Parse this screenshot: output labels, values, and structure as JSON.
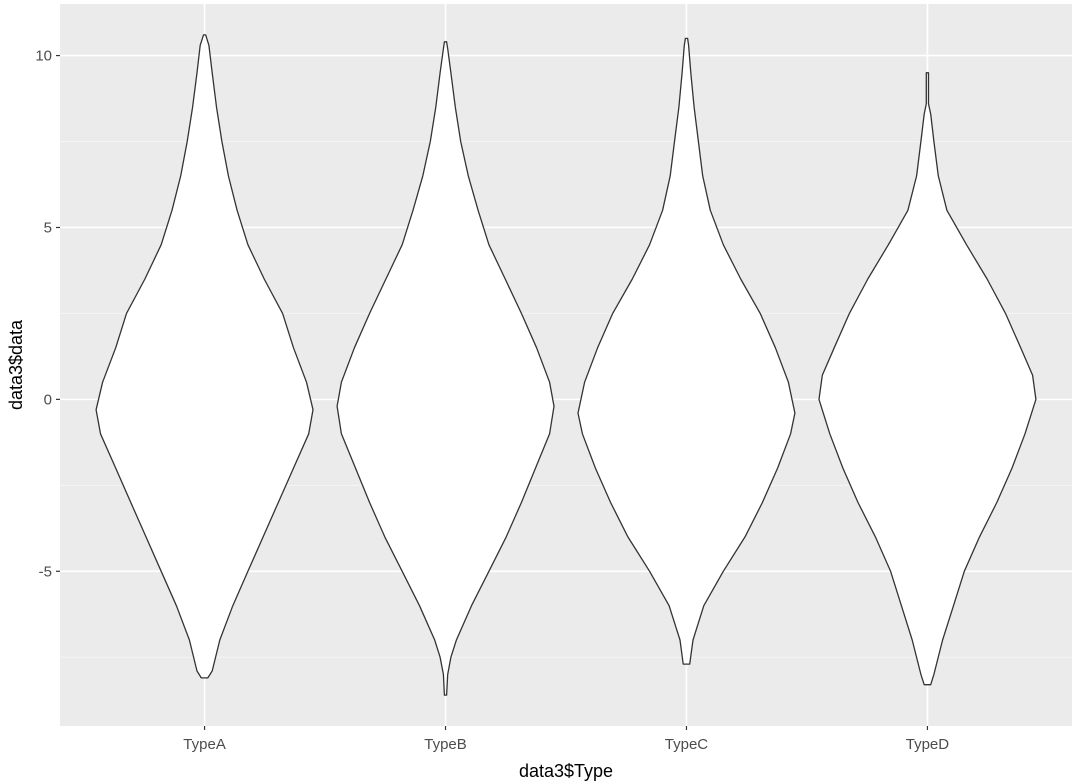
{
  "chart_data": {
    "type": "violin",
    "xlabel": "data3$Type",
    "ylabel": "data3$data",
    "categories": [
      "TypeA",
      "TypeB",
      "TypeC",
      "TypeD"
    ],
    "ylim": [
      -9.5,
      11.5
    ],
    "yticks": [
      -5,
      0,
      5,
      10
    ],
    "ytick_labels": [
      "-5",
      "0",
      "5",
      "10"
    ],
    "grid": true,
    "colors": {
      "panel": "#ebebeb",
      "grid_major": "#ffffff",
      "grid_minor": "#f5f5f5",
      "violin_fill": "#ffffff",
      "violin_stroke": "#333333",
      "tick_text": "#4d4d4d"
    },
    "series": [
      {
        "category": "TypeA",
        "profile": [
          [
            -8.1,
            0.03
          ],
          [
            -7.9,
            0.07
          ],
          [
            -7.0,
            0.14
          ],
          [
            -6.0,
            0.26
          ],
          [
            -5.0,
            0.4
          ],
          [
            -4.0,
            0.54
          ],
          [
            -3.0,
            0.68
          ],
          [
            -2.0,
            0.82
          ],
          [
            -1.0,
            0.96
          ],
          [
            -0.3,
            1.0
          ],
          [
            0.5,
            0.94
          ],
          [
            1.5,
            0.82
          ],
          [
            2.5,
            0.72
          ],
          [
            3.5,
            0.55
          ],
          [
            4.5,
            0.4
          ],
          [
            5.5,
            0.3
          ],
          [
            6.5,
            0.22
          ],
          [
            7.5,
            0.16
          ],
          [
            8.5,
            0.11
          ],
          [
            9.5,
            0.07
          ],
          [
            10.3,
            0.04
          ],
          [
            10.6,
            0.01
          ]
        ]
      },
      {
        "category": "TypeB",
        "profile": [
          [
            -8.6,
            0.01
          ],
          [
            -8.0,
            0.02
          ],
          [
            -7.5,
            0.05
          ],
          [
            -7.0,
            0.1
          ],
          [
            -6.0,
            0.24
          ],
          [
            -5.0,
            0.4
          ],
          [
            -4.0,
            0.56
          ],
          [
            -3.0,
            0.7
          ],
          [
            -2.0,
            0.83
          ],
          [
            -1.0,
            0.96
          ],
          [
            -0.2,
            1.0
          ],
          [
            0.5,
            0.96
          ],
          [
            1.5,
            0.84
          ],
          [
            2.5,
            0.7
          ],
          [
            3.5,
            0.55
          ],
          [
            4.5,
            0.4
          ],
          [
            5.5,
            0.3
          ],
          [
            6.5,
            0.21
          ],
          [
            7.5,
            0.14
          ],
          [
            8.5,
            0.09
          ],
          [
            9.5,
            0.05
          ],
          [
            10.2,
            0.02
          ],
          [
            10.4,
            0.01
          ]
        ]
      },
      {
        "category": "TypeC",
        "profile": [
          [
            -7.7,
            0.03
          ],
          [
            -7.0,
            0.06
          ],
          [
            -6.0,
            0.16
          ],
          [
            -5.0,
            0.34
          ],
          [
            -4.0,
            0.54
          ],
          [
            -3.0,
            0.7
          ],
          [
            -2.0,
            0.84
          ],
          [
            -1.0,
            0.96
          ],
          [
            -0.4,
            1.0
          ],
          [
            0.5,
            0.94
          ],
          [
            1.5,
            0.82
          ],
          [
            2.5,
            0.68
          ],
          [
            3.5,
            0.5
          ],
          [
            4.5,
            0.34
          ],
          [
            5.5,
            0.22
          ],
          [
            6.5,
            0.15
          ],
          [
            7.5,
            0.11
          ],
          [
            8.5,
            0.07
          ],
          [
            9.5,
            0.04
          ],
          [
            10.3,
            0.02
          ],
          [
            10.5,
            0.01
          ]
        ]
      },
      {
        "category": "TypeD",
        "profile": [
          [
            -8.3,
            0.03
          ],
          [
            -8.0,
            0.06
          ],
          [
            -7.0,
            0.14
          ],
          [
            -6.0,
            0.24
          ],
          [
            -5.0,
            0.34
          ],
          [
            -4.0,
            0.48
          ],
          [
            -3.0,
            0.64
          ],
          [
            -2.0,
            0.78
          ],
          [
            -1.0,
            0.9
          ],
          [
            0.0,
            1.0
          ],
          [
            0.7,
            0.97
          ],
          [
            1.5,
            0.86
          ],
          [
            2.5,
            0.72
          ],
          [
            3.5,
            0.55
          ],
          [
            4.5,
            0.36
          ],
          [
            5.5,
            0.18
          ],
          [
            6.5,
            0.1
          ],
          [
            7.5,
            0.06
          ],
          [
            8.3,
            0.03
          ],
          [
            8.6,
            0.01
          ],
          [
            9.5,
            0.01
          ]
        ]
      }
    ]
  }
}
